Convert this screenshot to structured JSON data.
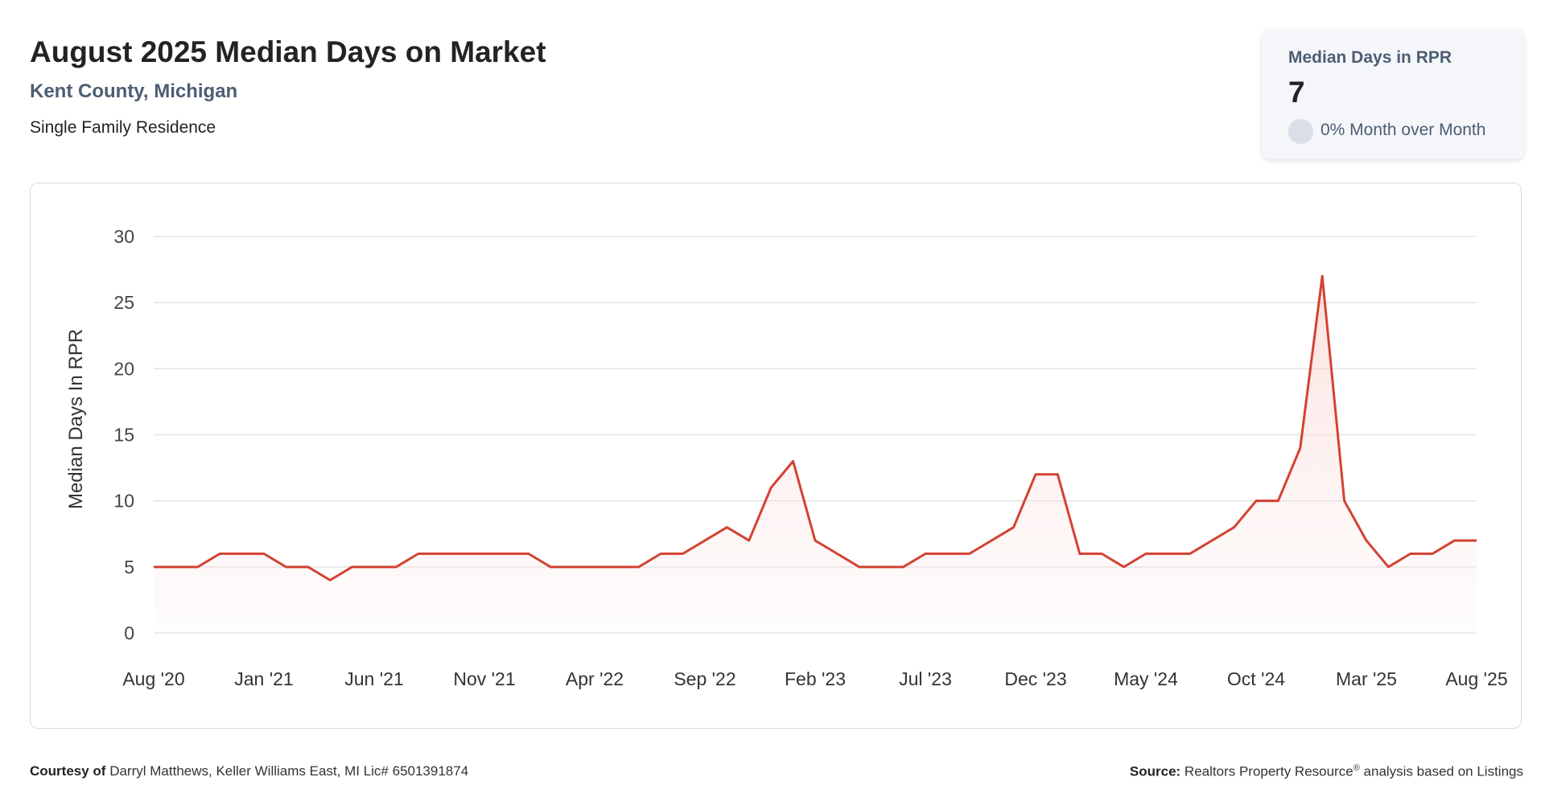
{
  "header": {
    "title": "August 2025 Median Days on Market",
    "location": "Kent County, Michigan",
    "property_type": "Single Family Residence"
  },
  "kpi": {
    "label": "Median Days in RPR",
    "value": "7",
    "change": "0% Month over Month"
  },
  "footer": {
    "courtesy_label": "Courtesy of",
    "courtesy_text": "Darryl Matthews, Keller Williams East, MI Lic# 6501391874",
    "source_label": "Source:",
    "source_text": "Realtors Property Resource",
    "source_mark": "®",
    "source_suffix": "analysis based on Listings"
  },
  "colors": {
    "line": "#d34232",
    "grid": "#e3e3e3",
    "axis_text": "#444444"
  },
  "chart_data": {
    "type": "area",
    "ylabel": "Median Days In RPR",
    "ylim": [
      0,
      30
    ],
    "yticks": [
      0,
      5,
      10,
      15,
      20,
      25,
      30
    ],
    "xticks": [
      "Aug '20",
      "Jan '21",
      "Jun '21",
      "Nov '21",
      "Apr '22",
      "Sep '22",
      "Feb '23",
      "Jul '23",
      "Dec '23",
      "May '24",
      "Oct '24",
      "Mar '25",
      "Aug '25"
    ],
    "grid": true,
    "series": [
      {
        "x": [
          "2020-08",
          "2020-09",
          "2020-10",
          "2020-11",
          "2020-12",
          "2021-01",
          "2021-02",
          "2021-03",
          "2021-04",
          "2021-05",
          "2021-06",
          "2021-07",
          "2021-08",
          "2021-09",
          "2021-10",
          "2021-11",
          "2021-12",
          "2022-01",
          "2022-02",
          "2022-03",
          "2022-04",
          "2022-05",
          "2022-06",
          "2022-07",
          "2022-08",
          "2022-09",
          "2022-10",
          "2022-11",
          "2022-12",
          "2023-01",
          "2023-02",
          "2023-03",
          "2023-04",
          "2023-05",
          "2023-06",
          "2023-07",
          "2023-08",
          "2023-09",
          "2023-10",
          "2023-11",
          "2023-12",
          "2024-01",
          "2024-02",
          "2024-03",
          "2024-04",
          "2024-05",
          "2024-06",
          "2024-07",
          "2024-08",
          "2024-09",
          "2024-10",
          "2024-11",
          "2024-12",
          "2025-01",
          "2025-02",
          "2025-03",
          "2025-04",
          "2025-05",
          "2025-06",
          "2025-07",
          "2025-08"
        ],
        "values": [
          5,
          5,
          5,
          6,
          6,
          6,
          5,
          5,
          4,
          5,
          5,
          5,
          6,
          6,
          6,
          6,
          6,
          6,
          5,
          5,
          5,
          5,
          5,
          6,
          6,
          7,
          8,
          7,
          11,
          13,
          7,
          6,
          5,
          5,
          5,
          6,
          6,
          6,
          7,
          8,
          12,
          12,
          6,
          6,
          5,
          6,
          6,
          6,
          7,
          8,
          10,
          10,
          14,
          27,
          10,
          7,
          5,
          6,
          6,
          7,
          7
        ]
      }
    ]
  }
}
